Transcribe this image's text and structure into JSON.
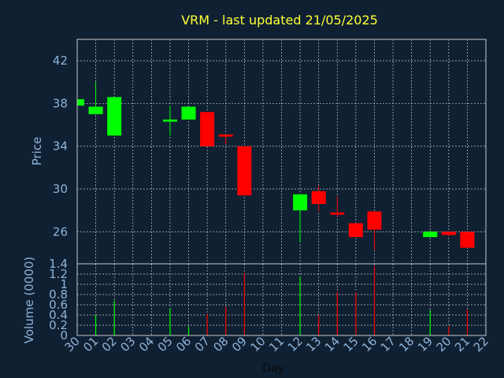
{
  "chart_data": {
    "type": "candlestick",
    "title": "VRM - last updated 21/05/2025",
    "xlabel": "Day",
    "x_ticks": [
      "30",
      "01",
      "02",
      "03",
      "04",
      "05",
      "06",
      "07",
      "08",
      "09",
      "10",
      "11",
      "12",
      "13",
      "14",
      "15",
      "16",
      "17",
      "18",
      "19",
      "20",
      "21",
      "22"
    ],
    "price": {
      "ylabel": "Price",
      "ylim": [
        23,
        44
      ],
      "yticks": [
        26,
        30,
        34,
        38,
        42
      ],
      "grid": true
    },
    "volume": {
      "ylabel": "Volume (0000)",
      "ylim": [
        0,
        1.4
      ],
      "yticks": [
        0,
        0.2,
        0.4,
        0.6,
        0.8,
        1,
        1.2,
        1.4
      ],
      "ytick_labels": [
        "0",
        "0.2",
        "0.4",
        "0.6",
        "0.8",
        "1",
        "1.2",
        "1.4"
      ],
      "grid": true
    },
    "colors": {
      "up": "#00ff00",
      "down": "#ff0000"
    },
    "candles": [
      {
        "x": "30",
        "open": 37.8,
        "high": 38.4,
        "low": 37.8,
        "close": 38.4,
        "volume": 0
      },
      {
        "x": "01",
        "open": 37.0,
        "high": 40.0,
        "low": 37.0,
        "close": 37.7,
        "volume": 0.4
      },
      {
        "x": "02",
        "open": 35.0,
        "high": 38.7,
        "low": 35.0,
        "close": 38.6,
        "volume": 0.68
      },
      {
        "x": "05",
        "open": 36.3,
        "high": 37.8,
        "low": 35.0,
        "close": 36.5,
        "volume": 0.53
      },
      {
        "x": "06",
        "open": 36.5,
        "high": 37.7,
        "low": 36.5,
        "close": 37.7,
        "volume": 0.18
      },
      {
        "x": "07",
        "open": 37.2,
        "high": 37.2,
        "low": 34.0,
        "close": 34.0,
        "volume": 0.42
      },
      {
        "x": "08",
        "open": 35.1,
        "high": 35.1,
        "low": 34.2,
        "close": 34.9,
        "volume": 0.56
      },
      {
        "x": "09",
        "open": 34.0,
        "high": 34.0,
        "low": 29.4,
        "close": 29.4,
        "volume": 1.22
      },
      {
        "x": "12",
        "open": 28.0,
        "high": 29.5,
        "low": 25.0,
        "close": 29.5,
        "volume": 1.15
      },
      {
        "x": "13",
        "open": 29.8,
        "high": 30.3,
        "low": 27.9,
        "close": 28.6,
        "volume": 0.4
      },
      {
        "x": "14",
        "open": 27.8,
        "high": 29.3,
        "low": 27.4,
        "close": 27.6,
        "volume": 0.85
      },
      {
        "x": "15",
        "open": 26.8,
        "high": 26.8,
        "low": 25.5,
        "close": 25.5,
        "volume": 0.84
      },
      {
        "x": "16",
        "open": 27.9,
        "high": 27.9,
        "low": 24.3,
        "close": 26.2,
        "volume": 1.35
      },
      {
        "x": "19",
        "open": 25.5,
        "high": 26.1,
        "low": 25.5,
        "close": 26.0,
        "volume": 0.5
      },
      {
        "x": "20",
        "open": 26.0,
        "high": 26.0,
        "low": 25.6,
        "close": 25.7,
        "volume": 0.18
      },
      {
        "x": "21",
        "open": 26.0,
        "high": 26.0,
        "low": 24.5,
        "close": 24.5,
        "volume": 0.5
      }
    ]
  }
}
